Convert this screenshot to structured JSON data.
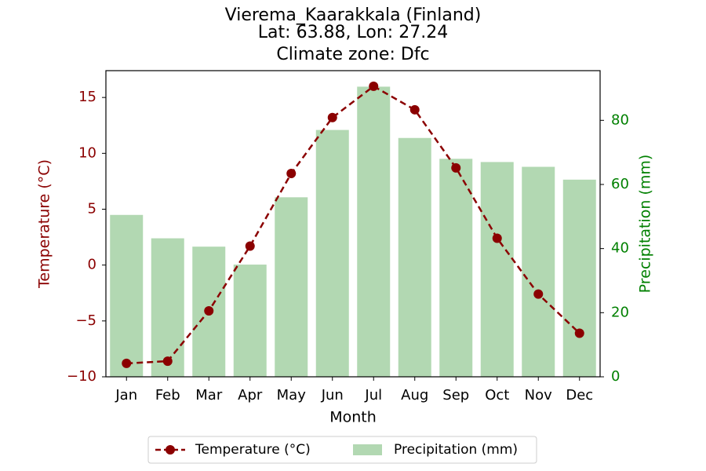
{
  "chart_data": {
    "type": "bar+line",
    "title_lines": [
      "Vierema_Kaarakkala (Finland)",
      "Lat: 63.88, Lon: 27.24",
      "Climate zone: Dfc"
    ],
    "xlabel": "Month",
    "categories": [
      "Jan",
      "Feb",
      "Mar",
      "Apr",
      "May",
      "Jun",
      "Jul",
      "Aug",
      "Sep",
      "Oct",
      "Nov",
      "Dec"
    ],
    "temperature": {
      "name": "Temperature (°C)",
      "axis_label": "Temperature (°C)",
      "values": [
        -8.8,
        -8.6,
        -4.1,
        1.7,
        8.2,
        13.2,
        16.0,
        13.9,
        8.7,
        2.4,
        -2.6,
        -6.1
      ],
      "ylim": [
        -10,
        17.4
      ],
      "ticks": [
        -10,
        -5,
        0,
        5,
        10,
        15
      ],
      "tick_labels": [
        "−10",
        "−5",
        "0",
        "5",
        "10",
        "15"
      ],
      "color": "#8b0000",
      "line_style": "dashed",
      "marker": "circle"
    },
    "precipitation": {
      "name": "Precipitation (mm)",
      "axis_label": "Precipitation (mm)",
      "values": [
        50.5,
        43.2,
        40.6,
        35.0,
        56.0,
        77.0,
        90.5,
        74.5,
        68.0,
        67.0,
        65.5,
        61.5
      ],
      "ylim": [
        0,
        95.5
      ],
      "ticks": [
        0,
        20,
        40,
        60,
        80
      ],
      "tick_labels": [
        "0",
        "20",
        "40",
        "60",
        "80"
      ],
      "color": "#b2d8b2",
      "axis_color": "#008000"
    },
    "legend_position": "bottom-center",
    "grid": false
  }
}
